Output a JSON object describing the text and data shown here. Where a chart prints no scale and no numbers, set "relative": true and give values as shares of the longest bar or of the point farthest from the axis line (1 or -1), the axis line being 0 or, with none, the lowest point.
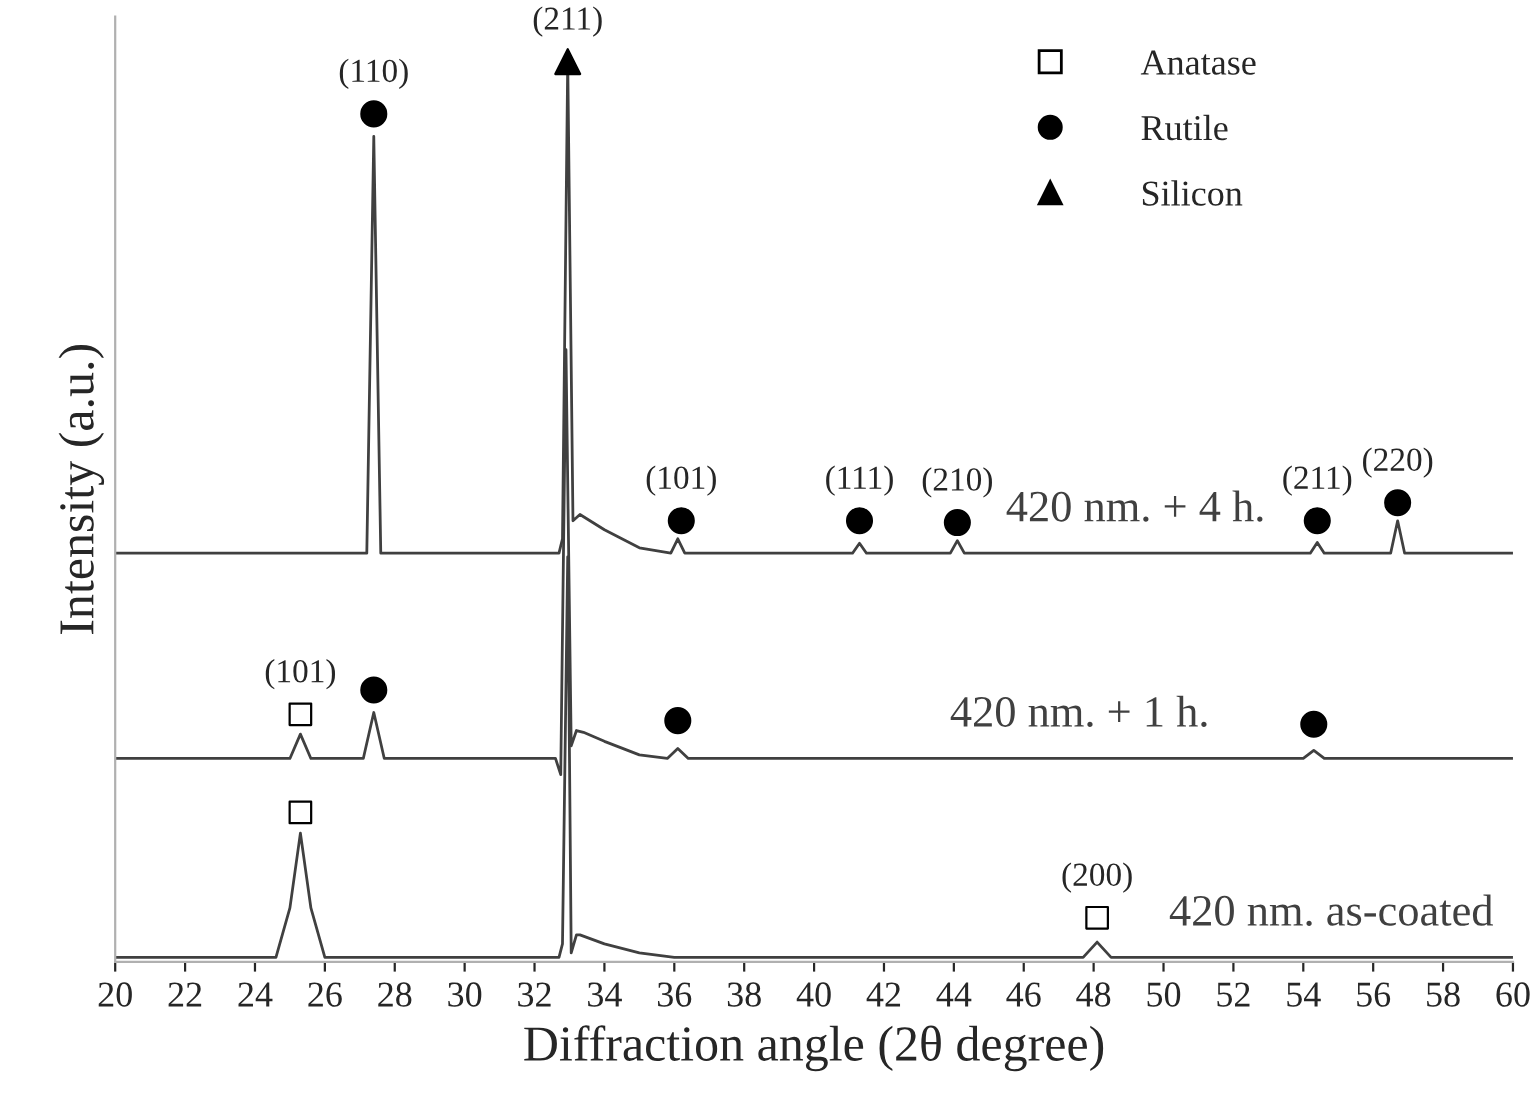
{
  "chart_data": {
    "type": "line",
    "relative": true,
    "xlabel": "Diffraction angle (2θ degree)",
    "ylabel": "Intensity (a.u.)",
    "xlim": [
      20,
      60
    ],
    "xticks": [
      20,
      22,
      24,
      26,
      28,
      30,
      32,
      34,
      36,
      38,
      40,
      42,
      44,
      46,
      48,
      50,
      52,
      54,
      56,
      58,
      60
    ],
    "tick_labels": "x",
    "grid": false,
    "legend": "top right",
    "series": [
      {
        "name": "420 nm. + 4 h.",
        "type": "line",
        "color": "#404040",
        "x": [
          20,
          27.2,
          27.4,
          27.6,
          32.7,
          32.8,
          32.95,
          33.1,
          33.3,
          34,
          35,
          35.9,
          36.1,
          36.3,
          41.1,
          41.3,
          41.5,
          43.9,
          44.1,
          44.3,
          54.2,
          54.4,
          54.6,
          56.5,
          56.7,
          56.9,
          60
        ],
        "values": [
          0.454,
          0.454,
          0.917,
          0.454,
          0.454,
          0.47,
          1.0,
          0.49,
          0.497,
          0.48,
          0.46,
          0.454,
          0.47,
          0.454,
          0.454,
          0.465,
          0.454,
          0.454,
          0.468,
          0.454,
          0.454,
          0.466,
          0.454,
          0.454,
          0.49,
          0.454,
          0.454
        ]
      },
      {
        "name": "420 nm. + 1 h.",
        "type": "line",
        "color": "#404040",
        "x": [
          20,
          25.0,
          25.3,
          25.6,
          27.1,
          27.4,
          27.7,
          32.6,
          32.75,
          32.9,
          33.05,
          33.2,
          33.4,
          34,
          35,
          35.8,
          36.1,
          36.4,
          54.0,
          54.3,
          54.6,
          60
        ],
        "values": [
          0.226,
          0.226,
          0.253,
          0.226,
          0.226,
          0.277,
          0.226,
          0.226,
          0.208,
          0.68,
          0.24,
          0.257,
          0.255,
          0.245,
          0.23,
          0.226,
          0.237,
          0.226,
          0.226,
          0.235,
          0.226,
          0.226
        ]
      },
      {
        "name": "420 nm. as-coated",
        "type": "line",
        "color": "#404040",
        "x": [
          20,
          24.6,
          25.0,
          25.3,
          25.6,
          26.0,
          32.7,
          32.8,
          32.95,
          33.05,
          33.2,
          33.3,
          34,
          35,
          36,
          47.7,
          48.1,
          48.5,
          60
        ],
        "values": [
          0.005,
          0.005,
          0.06,
          0.143,
          0.06,
          0.005,
          0.005,
          0.02,
          0.45,
          0.01,
          0.03,
          0.03,
          0.02,
          0.01,
          0.005,
          0.005,
          0.022,
          0.005,
          0.005
        ]
      },
      {
        "name": "Anatase",
        "type": "scatter",
        "marker": "square",
        "color": "#000000",
        "x": [
          25.3,
          25.3,
          48.1
        ],
        "values": [
          0.275,
          0.166,
          0.049
        ]
      },
      {
        "name": "Rutile",
        "type": "scatter",
        "marker": "circle",
        "color": "#000000",
        "x": [
          27.4,
          36.2,
          41.3,
          44.1,
          54.4,
          56.7,
          27.4,
          36.1,
          54.3
        ],
        "values": [
          0.942,
          0.49,
          0.49,
          0.488,
          0.49,
          0.51,
          0.302,
          0.268,
          0.264
        ]
      },
      {
        "name": "Silicon",
        "type": "scatter",
        "marker": "triangle",
        "color": "#000000",
        "x": [
          32.95
        ],
        "values": [
          1.0
        ]
      }
    ],
    "annotations": [
      {
        "text": "(110)",
        "x": 27.4,
        "y": 0.942
      },
      {
        "text": "(211)",
        "x": 32.95,
        "y": 1.0
      },
      {
        "text": "(101)",
        "x": 36.2,
        "y": 0.49
      },
      {
        "text": "(111)",
        "x": 41.3,
        "y": 0.49
      },
      {
        "text": "(210)",
        "x": 44.1,
        "y": 0.488
      },
      {
        "text": "(211)",
        "x": 54.4,
        "y": 0.49
      },
      {
        "text": "(220)",
        "x": 56.7,
        "y": 0.51
      },
      {
        "text": "(101)",
        "x": 25.3,
        "y": 0.275
      },
      {
        "text": "(200)",
        "x": 48.1,
        "y": 0.049
      }
    ]
  }
}
